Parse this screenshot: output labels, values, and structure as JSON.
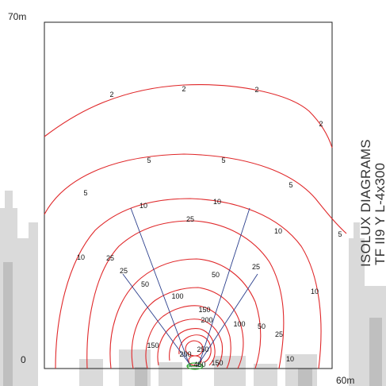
{
  "axis": {
    "y_max_label": "70m",
    "origin_label": "0",
    "x_max_label": "60m"
  },
  "title": {
    "line1": "ISOLUX DIAGRAMS",
    "line2": "TF II9 Y L-4x300"
  },
  "colors": {
    "contour": "#e0282a",
    "beam": "#2a3e8c",
    "source": "#33aa33",
    "frame": "#222222",
    "skyline": "#c8c8c8"
  },
  "contour_labels": [
    {
      "text": "2"
    },
    {
      "text": "2"
    },
    {
      "text": "2"
    },
    {
      "text": "2"
    },
    {
      "text": "5"
    },
    {
      "text": "5"
    },
    {
      "text": "5"
    },
    {
      "text": "5"
    },
    {
      "text": "5"
    },
    {
      "text": "10"
    },
    {
      "text": "10"
    },
    {
      "text": "10"
    },
    {
      "text": "10"
    },
    {
      "text": "10"
    },
    {
      "text": "10"
    },
    {
      "text": "25"
    },
    {
      "text": "25"
    },
    {
      "text": "25"
    },
    {
      "text": "25"
    },
    {
      "text": "25"
    },
    {
      "text": "50"
    },
    {
      "text": "50"
    },
    {
      "text": "50"
    },
    {
      "text": "100"
    },
    {
      "text": "100"
    },
    {
      "text": "150"
    },
    {
      "text": "150"
    },
    {
      "text": "150"
    },
    {
      "text": "200"
    },
    {
      "text": "200"
    },
    {
      "text": "250"
    },
    {
      "text": "450"
    }
  ]
}
